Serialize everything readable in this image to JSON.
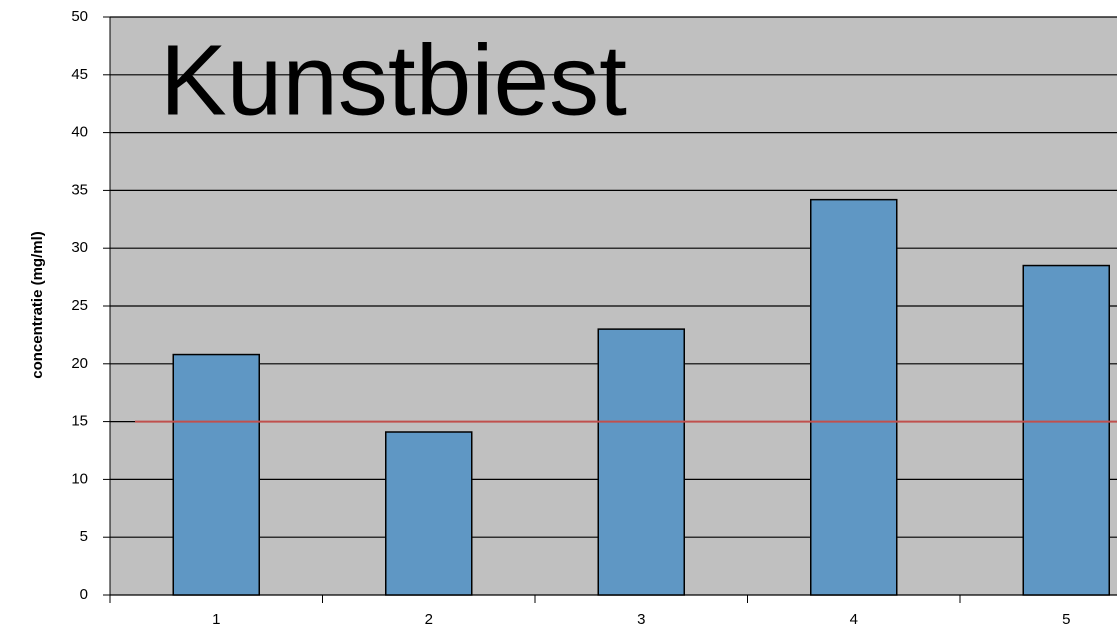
{
  "chart_data": {
    "type": "bar",
    "title": "Kunstbiest",
    "y_label": "concentratie (mg/ml)",
    "categories": [
      "1",
      "2",
      "3",
      "4",
      "5"
    ],
    "values": [
      20.8,
      14.1,
      23.0,
      34.2,
      28.5
    ],
    "color": "#5f97c4",
    "ylim": [
      0,
      50
    ],
    "yticks": [
      0,
      5,
      10,
      15,
      20,
      25,
      30,
      35,
      40,
      45,
      50
    ],
    "grid": true,
    "reference_line": {
      "value": 15,
      "color": "#c0504d"
    }
  }
}
